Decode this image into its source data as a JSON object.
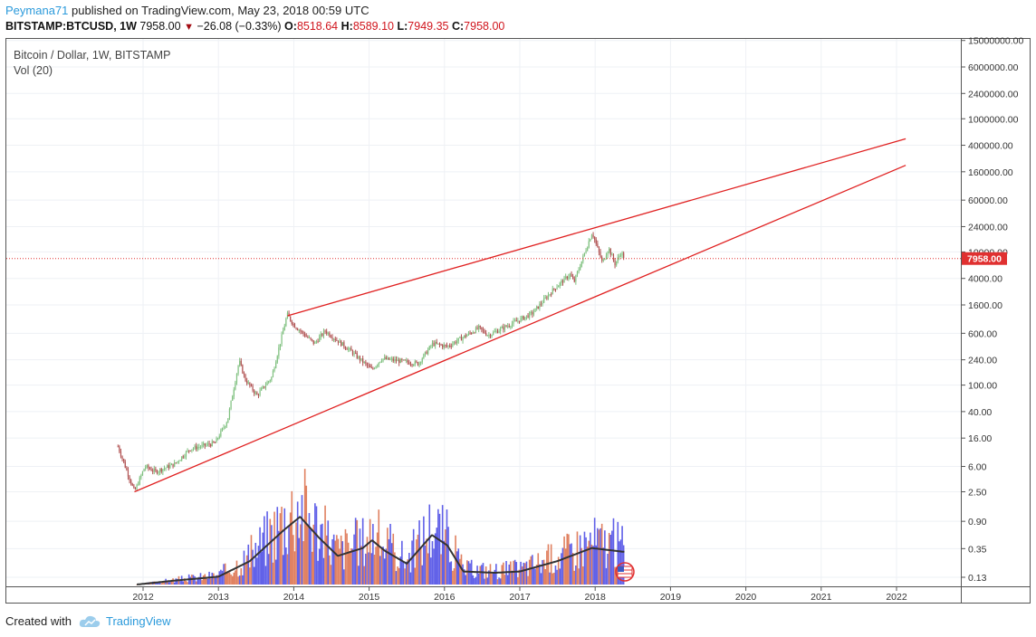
{
  "header": {
    "user": "Peymana71",
    "published_text": "published on TradingView.com, May 23, 2018 00:59 UTC",
    "symbol": "BITSTAMP:BTCUSD, 1W",
    "last": "7958.00",
    "change": "−26.08 (−0.33%)",
    "o_label": "O:",
    "o": "8518.64",
    "h_label": "H:",
    "h": "8589.10",
    "l_label": "L:",
    "l": "7949.35",
    "c_label": "C:",
    "c": "7958.00"
  },
  "legend": {
    "title": "Bitcoin / Dollar, 1W, BITSTAMP",
    "volume": "Vol (20)"
  },
  "footer": {
    "created_with": "Created with",
    "brand": "TradingView"
  },
  "colors": {
    "up": "#7fc07f",
    "down": "#b05050",
    "trendline": "#e02020",
    "vol_up": "#6060e8",
    "vol_down": "#e08060",
    "vol_ma": "#333333",
    "price_tag": "#e03030",
    "brand": "#2b9adb"
  },
  "chart_data": {
    "type": "candlestick",
    "y_scale": "log",
    "current_price": 7958.0,
    "current_price_label": "7958.00",
    "x_tick_labels": [
      "2012",
      "2013",
      "2014",
      "2015",
      "2016",
      "2017",
      "2018",
      "2019",
      "2020",
      "2021",
      "2022"
    ],
    "y_tick_labels": [
      "15000000.00",
      "6000000.00",
      "2400000.00",
      "1000000.00",
      "400000.00",
      "160000.00",
      "60000.00",
      "24000.00",
      "10000.00",
      "4000.00",
      "1600.00",
      "600.00",
      "240.00",
      "100.00",
      "40.00",
      "16.00",
      "6.00",
      "2.50",
      "0.90",
      "0.35",
      "0.13"
    ],
    "price_path": [
      {
        "date": "2011-09-01",
        "price": 12
      },
      {
        "date": "2011-10-15",
        "price": 5
      },
      {
        "date": "2011-11-20",
        "price": 2.5
      },
      {
        "date": "2012-01-10",
        "price": 6
      },
      {
        "date": "2012-03-01",
        "price": 5
      },
      {
        "date": "2012-06-01",
        "price": 6.5
      },
      {
        "date": "2012-08-15",
        "price": 11
      },
      {
        "date": "2012-12-15",
        "price": 13.5
      },
      {
        "date": "2013-02-15",
        "price": 30
      },
      {
        "date": "2013-04-10",
        "price": 230
      },
      {
        "date": "2013-05-10",
        "price": 120
      },
      {
        "date": "2013-07-05",
        "price": 70
      },
      {
        "date": "2013-09-15",
        "price": 130
      },
      {
        "date": "2013-11-30",
        "price": 1150
      },
      {
        "date": "2014-01-01",
        "price": 800
      },
      {
        "date": "2014-04-10",
        "price": 420
      },
      {
        "date": "2014-06-01",
        "price": 650
      },
      {
        "date": "2014-10-01",
        "price": 330
      },
      {
        "date": "2015-01-14",
        "price": 170
      },
      {
        "date": "2015-03-01",
        "price": 250
      },
      {
        "date": "2015-08-25",
        "price": 210
      },
      {
        "date": "2015-11-05",
        "price": 420
      },
      {
        "date": "2016-01-15",
        "price": 380
      },
      {
        "date": "2016-06-15",
        "price": 720
      },
      {
        "date": "2016-08-01",
        "price": 560
      },
      {
        "date": "2016-12-31",
        "price": 960
      },
      {
        "date": "2017-03-01",
        "price": 1200
      },
      {
        "date": "2017-06-15",
        "price": 2800
      },
      {
        "date": "2017-09-01",
        "price": 4600
      },
      {
        "date": "2017-09-20",
        "price": 3500
      },
      {
        "date": "2017-12-17",
        "price": 19700
      },
      {
        "date": "2018-02-06",
        "price": 6800
      },
      {
        "date": "2018-03-05",
        "price": 11500
      },
      {
        "date": "2018-04-06",
        "price": 6600
      },
      {
        "date": "2018-05-05",
        "price": 9800
      },
      {
        "date": "2018-05-23",
        "price": 7958
      }
    ],
    "volume_ma_path": [
      {
        "date": "2011-12-01",
        "ratio": 0.0
      },
      {
        "date": "2012-06-01",
        "ratio": 0.03
      },
      {
        "date": "2013-01-01",
        "ratio": 0.06
      },
      {
        "date": "2013-06-01",
        "ratio": 0.18
      },
      {
        "date": "2013-11-15",
        "ratio": 0.42
      },
      {
        "date": "2014-02-01",
        "ratio": 0.52
      },
      {
        "date": "2014-05-01",
        "ratio": 0.36
      },
      {
        "date": "2014-08-01",
        "ratio": 0.22
      },
      {
        "date": "2014-12-01",
        "ratio": 0.28
      },
      {
        "date": "2015-01-15",
        "ratio": 0.34
      },
      {
        "date": "2015-03-15",
        "ratio": 0.26
      },
      {
        "date": "2015-07-01",
        "ratio": 0.16
      },
      {
        "date": "2015-11-01",
        "ratio": 0.38
      },
      {
        "date": "2016-01-15",
        "ratio": 0.3
      },
      {
        "date": "2016-04-01",
        "ratio": 0.1
      },
      {
        "date": "2016-09-01",
        "ratio": 0.09
      },
      {
        "date": "2017-01-01",
        "ratio": 0.1
      },
      {
        "date": "2017-07-01",
        "ratio": 0.18
      },
      {
        "date": "2017-12-15",
        "ratio": 0.28
      },
      {
        "date": "2018-05-23",
        "ratio": 0.25
      }
    ],
    "trendlines": [
      {
        "name": "resistance",
        "from": {
          "date": "2013-12-01",
          "price": 1100
        },
        "to": {
          "date": "2022-02-15",
          "price": 500000
        }
      },
      {
        "name": "support",
        "from": {
          "date": "2011-11-20",
          "price": 2.5
        },
        "to": {
          "date": "2022-02-15",
          "price": 200000
        }
      }
    ]
  }
}
